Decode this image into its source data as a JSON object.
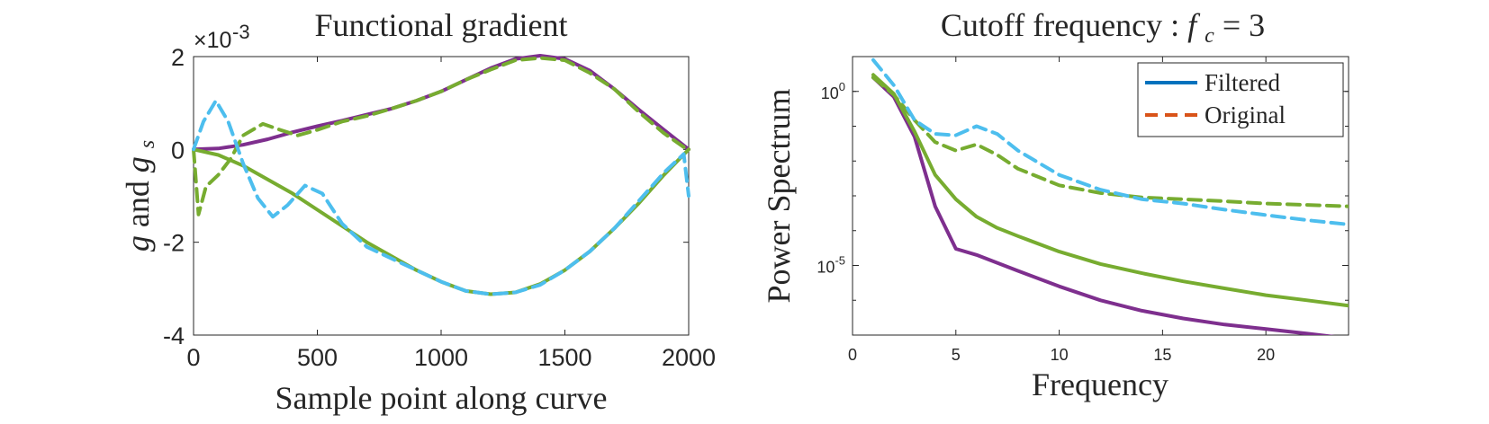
{
  "colors": {
    "purple": "#7e2f8e",
    "green": "#77ac30",
    "cyan": "#4dbeee",
    "blue": "#0072bd",
    "orange": "#d95319"
  },
  "chart_data": [
    {
      "type": "line",
      "title": "Functional gradient",
      "xlabel": "Sample point along curve",
      "ylabel": "g and g_s",
      "y_exponent_label": "×10",
      "y_exponent_value": "-3",
      "xlim": [
        0,
        2000
      ],
      "ylim": [
        -4,
        2
      ],
      "xticks": [
        0,
        500,
        1000,
        1500,
        2000
      ],
      "xtick_labels": [
        "0",
        "500",
        "1000",
        "1500",
        "2000"
      ],
      "yticks": [
        -4,
        -2,
        0,
        2
      ],
      "ytick_labels": [
        "-4",
        "-2",
        "0",
        "2"
      ],
      "series": [
        {
          "color": "purple",
          "style": "solid",
          "x": [
            0,
            100,
            200,
            300,
            400,
            500,
            600,
            700,
            800,
            900,
            1000,
            1100,
            1200,
            1300,
            1400,
            1500,
            1600,
            1700,
            1800,
            1900,
            2000
          ],
          "y": [
            0,
            0.02,
            0.1,
            0.22,
            0.37,
            0.5,
            0.62,
            0.75,
            0.88,
            1.05,
            1.25,
            1.5,
            1.75,
            1.95,
            2.02,
            1.95,
            1.7,
            1.3,
            0.85,
            0.42,
            0
          ]
        },
        {
          "color": "green",
          "style": "dashed",
          "x": [
            0,
            20,
            50,
            100,
            150,
            200,
            280,
            350,
            420,
            500,
            600,
            700,
            800,
            900,
            1000,
            1100,
            1200,
            1300,
            1400,
            1500,
            1600,
            1700,
            1800,
            1900,
            1980,
            2000
          ],
          "y": [
            0,
            -1.4,
            -0.8,
            -0.55,
            -0.2,
            0.3,
            0.55,
            0.42,
            0.3,
            0.42,
            0.6,
            0.72,
            0.88,
            1.05,
            1.25,
            1.5,
            1.72,
            1.92,
            1.97,
            1.92,
            1.65,
            1.3,
            0.8,
            0.35,
            0.05,
            0.1
          ]
        },
        {
          "color": "green",
          "style": "solid",
          "x": [
            0,
            100,
            200,
            300,
            400,
            500,
            600,
            700,
            800,
            900,
            1000,
            1100,
            1200,
            1300,
            1400,
            1500,
            1600,
            1700,
            1800,
            1900,
            2000
          ],
          "y": [
            0,
            -0.12,
            -0.35,
            -0.65,
            -0.95,
            -1.3,
            -1.65,
            -2.0,
            -2.3,
            -2.6,
            -2.85,
            -3.05,
            -3.12,
            -3.08,
            -2.9,
            -2.6,
            -2.2,
            -1.7,
            -1.15,
            -0.55,
            0
          ]
        },
        {
          "color": "cyan",
          "style": "dashed",
          "x": [
            0,
            40,
            90,
            140,
            200,
            260,
            320,
            380,
            450,
            520,
            600,
            700,
            800,
            900,
            1000,
            1100,
            1200,
            1300,
            1400,
            1500,
            1600,
            1700,
            1800,
            1900,
            1980,
            2000
          ],
          "y": [
            0,
            0.6,
            1.05,
            0.6,
            -0.3,
            -1.05,
            -1.45,
            -1.2,
            -0.78,
            -0.95,
            -1.6,
            -2.1,
            -2.35,
            -2.6,
            -2.85,
            -3.05,
            -3.12,
            -3.08,
            -2.92,
            -2.6,
            -2.2,
            -1.7,
            -1.1,
            -0.5,
            -0.1,
            -1.0
          ]
        }
      ]
    },
    {
      "type": "line",
      "title_text": "Cutoff frequency : ",
      "title_math_var": "f",
      "title_math_sub": "c",
      "title_math_rest": " = 3",
      "xlabel": "Frequency",
      "ylabel": "Power Spectrum",
      "yscale": "log",
      "xlim": [
        0,
        24
      ],
      "ylim": [
        1e-07,
        10
      ],
      "xticks": [
        0,
        5,
        10,
        15,
        20
      ],
      "xtick_labels": [
        "0",
        "5",
        "10",
        "15",
        "20"
      ],
      "yticks_log": [
        0,
        -5
      ],
      "ytick_base": "10",
      "ytick_exponents": [
        "0",
        "-5"
      ],
      "legend_position": "top-right",
      "legend": [
        {
          "label": "Filtered",
          "color": "blue",
          "style": "solid"
        },
        {
          "label": "Original",
          "color": "orange",
          "style": "dashed"
        }
      ],
      "series": [
        {
          "color": "purple",
          "style": "solid",
          "x": [
            1,
            2,
            3,
            4,
            5,
            6,
            8,
            10,
            12,
            14,
            16,
            18,
            20,
            22,
            24
          ],
          "y": [
            2.5,
            0.7,
            0.05,
            0.0005,
            3e-05,
            2e-05,
            7e-06,
            2.5e-06,
            1e-06,
            5e-07,
            3e-07,
            2e-07,
            1.5e-07,
            1.1e-07,
            8e-08
          ]
        },
        {
          "color": "green",
          "style": "solid",
          "x": [
            1,
            2,
            3,
            4,
            5,
            6,
            7,
            8,
            10,
            12,
            14,
            16,
            18,
            20,
            22,
            24
          ],
          "y": [
            3,
            0.85,
            0.07,
            0.004,
            0.0008,
            0.00025,
            0.00012,
            7e-05,
            2.5e-05,
            1.1e-05,
            6e-06,
            3.5e-06,
            2.2e-06,
            1.4e-06,
            1e-06,
            7e-07
          ]
        },
        {
          "color": "green",
          "style": "dashed",
          "x": [
            1,
            2,
            3,
            4,
            5,
            6,
            7,
            8,
            10,
            12,
            14,
            16,
            18,
            20,
            22,
            24
          ],
          "y": [
            2.5,
            0.8,
            0.15,
            0.035,
            0.02,
            0.03,
            0.015,
            0.006,
            0.002,
            0.0012,
            0.0009,
            0.0008,
            0.0007,
            0.0006,
            0.00055,
            0.0005
          ]
        },
        {
          "color": "cyan",
          "style": "dashed",
          "x": [
            1,
            2,
            3,
            4,
            5,
            6,
            7,
            8,
            10,
            12,
            14,
            16,
            18,
            20,
            22,
            24
          ],
          "y": [
            8,
            1.5,
            0.15,
            0.06,
            0.055,
            0.1,
            0.06,
            0.02,
            0.004,
            0.0015,
            0.0008,
            0.0006,
            0.0004,
            0.00028,
            0.0002,
            0.00015
          ]
        }
      ]
    }
  ]
}
